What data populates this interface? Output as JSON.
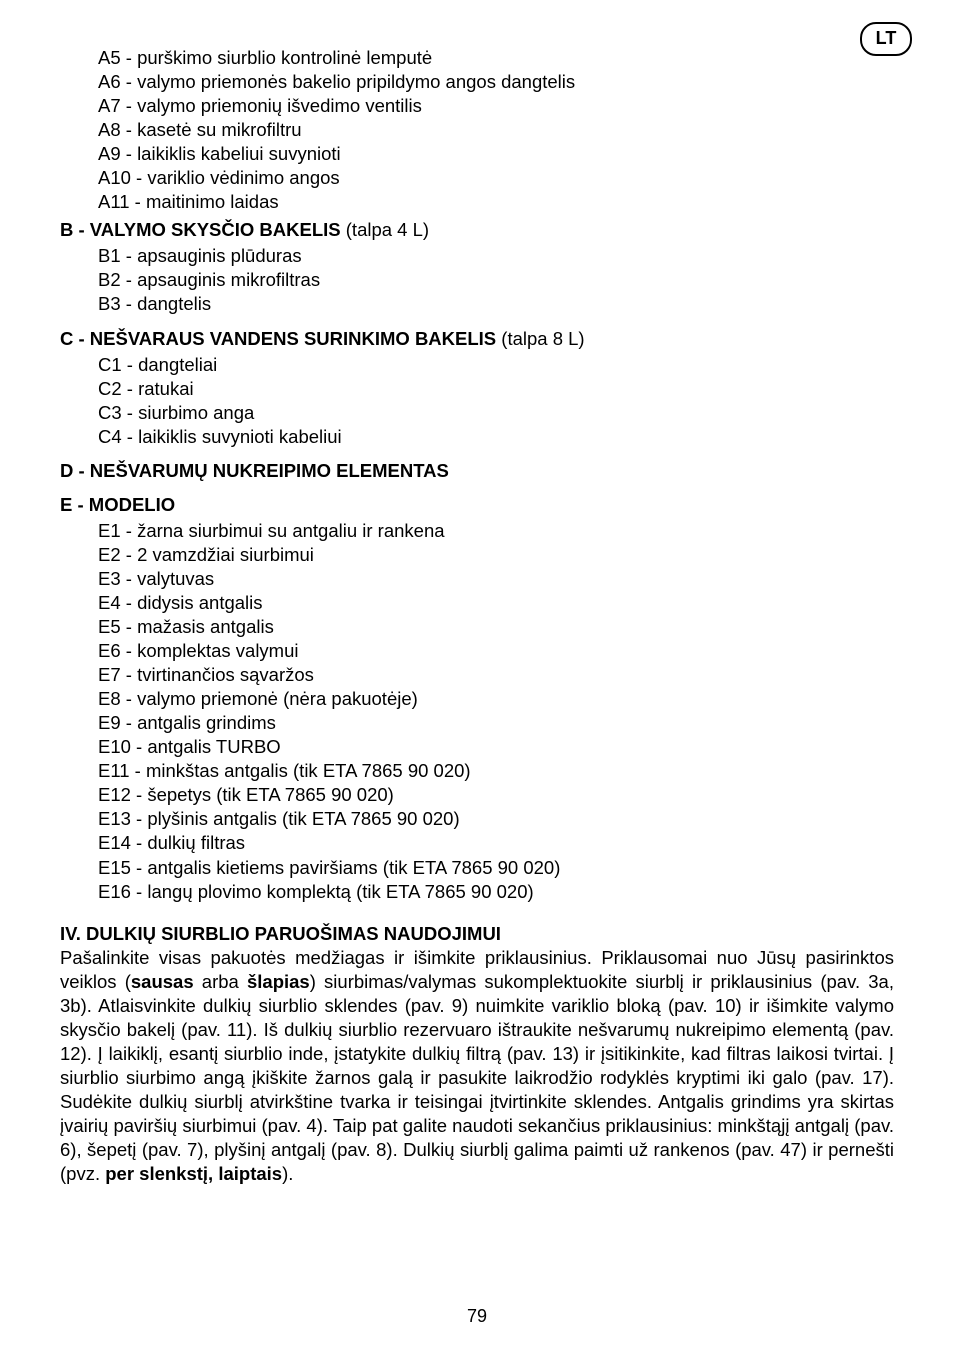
{
  "badge": "LT",
  "pageNumber": "79",
  "topItems": [
    "A5 - purškimo siurblio kontrolinė lemputė",
    "A6 - valymo priemonės bakelio pripildymo angos dangtelis",
    "A7 - valymo priemonių išvedimo ventilis",
    "A8 - kasetė su mikrofiltru",
    "A9 - laikiklis kabeliui suvynioti",
    "A10 - variklio vėdinimo angos",
    "A11 - maitinimo laidas"
  ],
  "sectionB": {
    "titleBold": "B - VALYMO SKYSČIO BAKELIS",
    "titleRest": " (talpa 4 L)",
    "items": [
      "B1 - apsauginis plūduras",
      "B2 - apsauginis mikrofiltras",
      "B3 - dangtelis"
    ]
  },
  "sectionC": {
    "titleBold": "C - NEŠVARAUS VANDENS SURINKIMO BAKELIS",
    "titleRest": " (talpa 8 L)",
    "items": [
      "C1 - dangteliai",
      "C2 - ratukai",
      "C3 - siurbimo anga",
      "C4 - laikiklis suvynioti kabeliui"
    ]
  },
  "sectionD": {
    "title": "D - NEŠVARUMŲ NUKREIPIMO ELEMENTAS"
  },
  "sectionE": {
    "title": "E - MODELIO",
    "items": [
      "E1 - žarna siurbimui su antgaliu ir rankena",
      "E2 - 2 vamzdžiai siurbimui",
      "E3 - valytuvas",
      "E4 - didysis antgalis",
      "E5 - mažasis antgalis",
      "E6 - komplektas valymui",
      "E7 - tvirtinančios sąvaržos",
      "E8 - valymo priemonė (nėra pakuotėje)",
      "E9 - antgalis grindims",
      "E10 - antgalis TURBO",
      "E11 - minkštas antgalis (tik ETA 7865 90 020)",
      "E12 - šepetys (tik ETA 7865 90 020)",
      "E13 - plyšinis antgalis (tik ETA 7865 90 020)",
      "E14 - dulkių filtras",
      "E15 - antgalis kietiems paviršiams (tik ETA 7865 90 020)",
      "E16 - langų plovimo komplektą (tik ETA 7865 90 020)"
    ]
  },
  "sectionIV": {
    "heading": "IV. DULKIŲ SIURBLIO PARUOŠIMAS NAUDOJIMUI",
    "body_pre": "Pašalinkite visas pakuotės medžiagas ir išimkite priklausinius. Priklausomai nuo Jūsų pasirinktos veiklos (",
    "bold1": "sausas",
    "mid1": " arba ",
    "bold2": "šlapias",
    "body_mid": ") siurbimas/valymas sukomplektuokite siurblį ir priklausinius (pav. 3a, 3b). Atlaisvinkite dulkių siurblio sklendes (pav. 9) nuimkite variklio bloką (pav. 10) ir išimkite valymo skysčio bakelį (pav. 11). Iš dulkių siurblio rezervuaro ištraukite nešvarumų nukreipimo elementą (pav. 12). Į laikiklį, esantį siurblio inde, įstatykite dulkių filtrą (pav. 13) ir įsitikinkite, kad filtras laikosi tvirtai. Į siurblio siurbimo angą įkiškite žarnos galą ir pasukite laikrodžio rodyklės kryptimi iki galo (pav. 17). Sudėkite dulkių siurblį atvirkštine tvarka ir teisingai įtvirtinkite sklendes. Antgalis grindims yra skirtas įvairių paviršių siurbimui (pav. 4). Taip pat galite naudoti sekančius priklausinius: minkštąjį antgalį (pav. 6), šepetį (pav. 7), plyšinį antgalį (pav. 8). Dulkių siurblį galima paimti už rankenos (pav. 47) ir pernešti (pvz. ",
    "bold3": "per slenkstį, laiptais",
    "body_end": ")."
  }
}
